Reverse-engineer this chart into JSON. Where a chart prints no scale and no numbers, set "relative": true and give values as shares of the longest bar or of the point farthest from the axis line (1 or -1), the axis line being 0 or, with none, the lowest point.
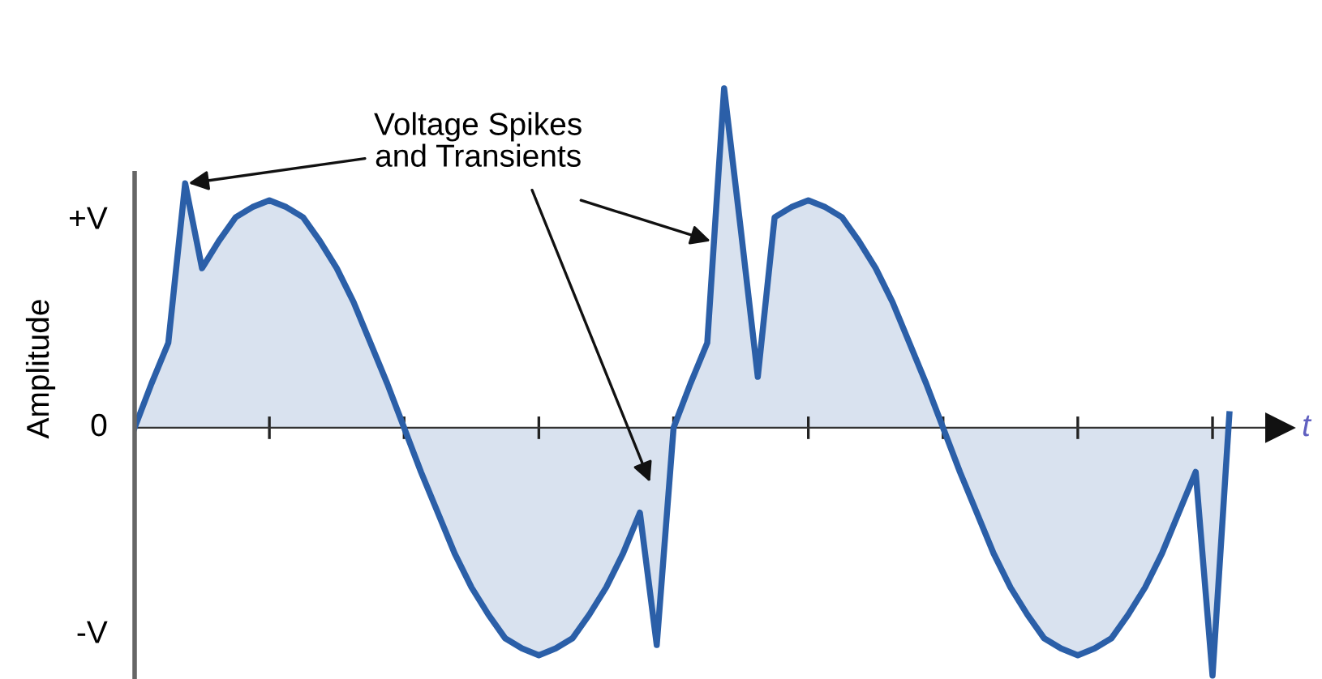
{
  "chart_data": {
    "type": "area",
    "xlabel": "t",
    "ylabel": "Amplitude",
    "annotations": [
      "Voltage Spikes\nand Transients",
      "+V",
      "0",
      "-V"
    ],
    "relative": true,
    "categories": [
      null,
      null,
      null,
      null,
      null,
      null,
      null,
      null,
      null,
      null,
      null,
      null,
      null,
      null,
      null,
      null,
      null,
      null,
      null,
      null,
      null,
      null,
      null,
      null,
      null,
      null,
      null,
      null,
      null,
      null,
      null,
      null,
      null,
      null,
      null,
      null,
      null,
      null,
      null,
      null,
      null,
      null,
      null,
      null,
      null,
      null,
      null,
      null,
      null,
      null,
      null,
      null,
      null,
      null,
      null,
      null,
      null,
      null,
      null,
      null,
      null,
      null,
      null,
      null,
      null,
      null
    ],
    "series": [
      {
        "color": "#2b5fa8",
        "values": [
          0,
          0.13,
          0.25,
          0.72,
          0.47,
          0.55,
          0.62,
          0.65,
          0.67,
          0.65,
          0.62,
          0.55,
          0.47,
          0.37,
          0.25,
          0.13,
          0,
          -0.13,
          -0.25,
          -0.37,
          -0.47,
          -0.55,
          -0.62,
          -0.65,
          -0.67,
          -0.65,
          -0.62,
          -0.55,
          -0.47,
          -0.37,
          -0.25,
          -0.64,
          0,
          0.13,
          0.25,
          1,
          0.58,
          0.15,
          0.62,
          0.65,
          0.67,
          0.65,
          0.62,
          0.55,
          0.47,
          0.37,
          0.25,
          0.13,
          0,
          -0.13,
          -0.25,
          -0.37,
          -0.47,
          -0.55,
          -0.62,
          -0.65,
          -0.67,
          -0.65,
          -0.62,
          -0.55,
          -0.47,
          -0.37,
          -0.25,
          -0.13,
          -0.73,
          0.04
        ]
      }
    ],
    "grid": false
  }
}
